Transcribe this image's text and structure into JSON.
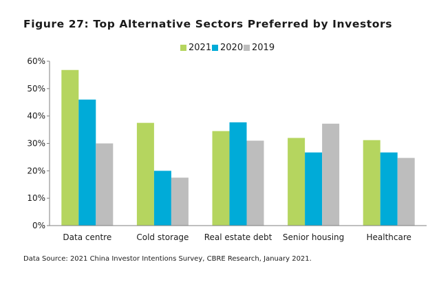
{
  "chart_data": {
    "type": "bar",
    "title": "Figure 27: Top Alternative Sectors Preferred by Investors",
    "categories": [
      "Data centre",
      "Cold storage",
      "Real estate debt",
      "Senior housing",
      "Healthcare"
    ],
    "series": [
      {
        "name": "2021",
        "color": "#b5d55f",
        "values": [
          56.8,
          37.5,
          34.5,
          32.0,
          31.2
        ]
      },
      {
        "name": "2020",
        "color": "#00abd8",
        "values": [
          46.0,
          20.0,
          37.7,
          26.7,
          26.7
        ]
      },
      {
        "name": "2019",
        "color": "#bdbdbd",
        "values": [
          30.0,
          17.5,
          31.0,
          37.2,
          24.7
        ]
      }
    ],
    "y_ticks": [
      "0%",
      "10%",
      "20%",
      "30%",
      "40%",
      "50%",
      "60%"
    ],
    "ylim": [
      0,
      60
    ],
    "xlabel": "",
    "ylabel": "",
    "legend_position": "top",
    "grid": false,
    "source": "Data Source: 2021 China Investor Intentions Survey, CBRE Research, January 2021."
  }
}
